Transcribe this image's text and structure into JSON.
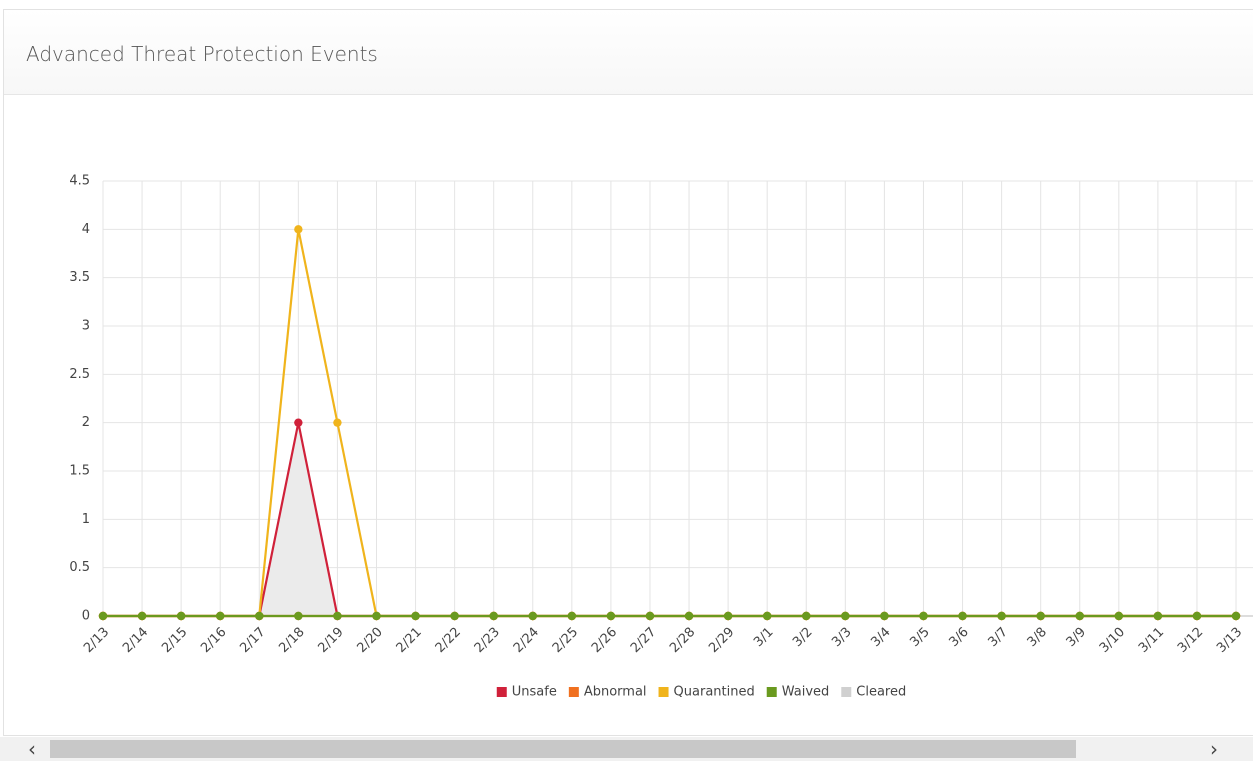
{
  "chart_data": {
    "type": "line",
    "title": "Advanced Threat Protection Events",
    "categories": [
      "2/13",
      "2/14",
      "2/15",
      "2/16",
      "2/17",
      "2/18",
      "2/19",
      "2/20",
      "2/21",
      "2/22",
      "2/23",
      "2/24",
      "2/25",
      "2/26",
      "2/27",
      "2/28",
      "2/29",
      "3/1",
      "3/2",
      "3/3",
      "3/4",
      "3/5",
      "3/6",
      "3/7",
      "3/8",
      "3/9",
      "3/10",
      "3/11",
      "3/12",
      "3/13"
    ],
    "series": [
      {
        "name": "Unsafe",
        "color": "#d0213a",
        "values": [
          0,
          0,
          0,
          0,
          0,
          2,
          0,
          0,
          0,
          0,
          0,
          0,
          0,
          0,
          0,
          0,
          0,
          0,
          0,
          0,
          0,
          0,
          0,
          0,
          0,
          0,
          0,
          0,
          0,
          0
        ]
      },
      {
        "name": "Abnormal",
        "color": "#f07020",
        "values": [
          0,
          0,
          0,
          0,
          0,
          0,
          0,
          0,
          0,
          0,
          0,
          0,
          0,
          0,
          0,
          0,
          0,
          0,
          0,
          0,
          0,
          0,
          0,
          0,
          0,
          0,
          0,
          0,
          0,
          0
        ]
      },
      {
        "name": "Quarantined",
        "color": "#f0b41c",
        "values": [
          0,
          0,
          0,
          0,
          0,
          4,
          2,
          0,
          0,
          0,
          0,
          0,
          0,
          0,
          0,
          0,
          0,
          0,
          0,
          0,
          0,
          0,
          0,
          0,
          0,
          0,
          0,
          0,
          0,
          0
        ]
      },
      {
        "name": "Waived",
        "color": "#6a9a1f",
        "values": [
          0,
          0,
          0,
          0,
          0,
          0,
          0,
          0,
          0,
          0,
          0,
          0,
          0,
          0,
          0,
          0,
          0,
          0,
          0,
          0,
          0,
          0,
          0,
          0,
          0,
          0,
          0,
          0,
          0,
          0
        ]
      },
      {
        "name": "Cleared",
        "color": "#d0d0d0",
        "values": [
          0,
          0,
          0,
          0,
          0,
          2,
          0,
          0,
          0,
          0,
          0,
          0,
          0,
          0,
          0,
          0,
          0,
          0,
          0,
          0,
          0,
          0,
          0,
          0,
          0,
          0,
          0,
          0,
          0,
          0
        ]
      }
    ],
    "ylim": [
      0,
      4.5
    ],
    "yticks": [
      0,
      0.5,
      1,
      1.5,
      2,
      2.5,
      3,
      3.5,
      4,
      4.5
    ],
    "grid": true,
    "legend": "bottom"
  }
}
